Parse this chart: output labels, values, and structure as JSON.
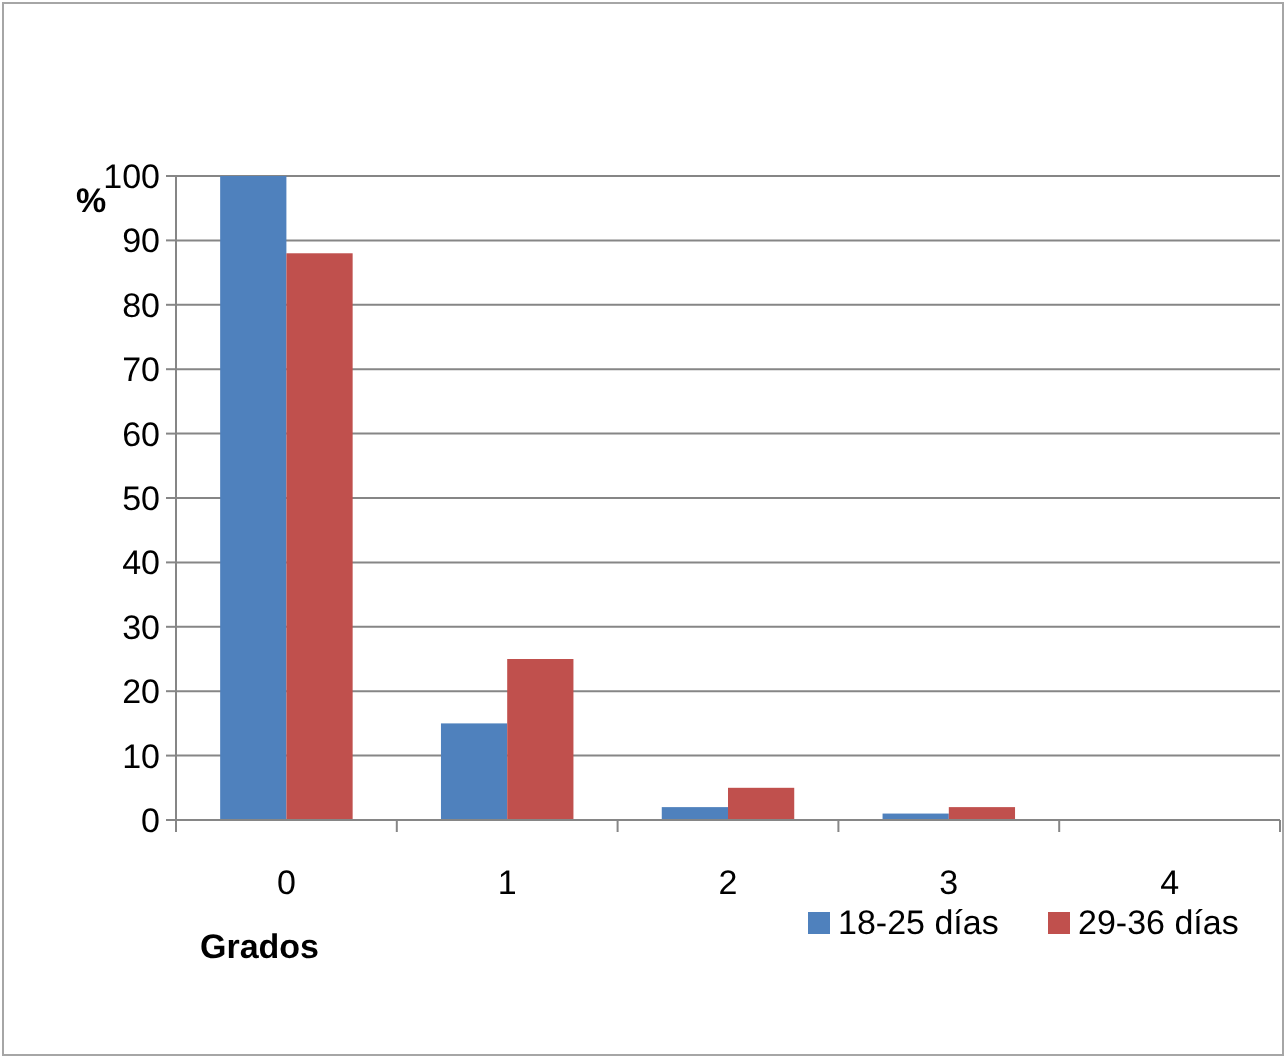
{
  "chart_data": {
    "type": "bar",
    "xlabel": "Grados",
    "ylabel": "%",
    "categories": [
      "0",
      "1",
      "2",
      "3",
      "4"
    ],
    "series": [
      {
        "name": "18-25 días",
        "color": "#4f81bd",
        "values": [
          100,
          15,
          2,
          1,
          0
        ]
      },
      {
        "name": "29-36 días",
        "color": "#c0504d",
        "values": [
          88,
          25,
          5,
          2,
          0
        ]
      }
    ],
    "ylim": [
      0,
      100
    ],
    "yticks": [
      0,
      10,
      20,
      30,
      40,
      50,
      60,
      70,
      80,
      90,
      100
    ],
    "grid": "y",
    "legend": "bottom"
  }
}
